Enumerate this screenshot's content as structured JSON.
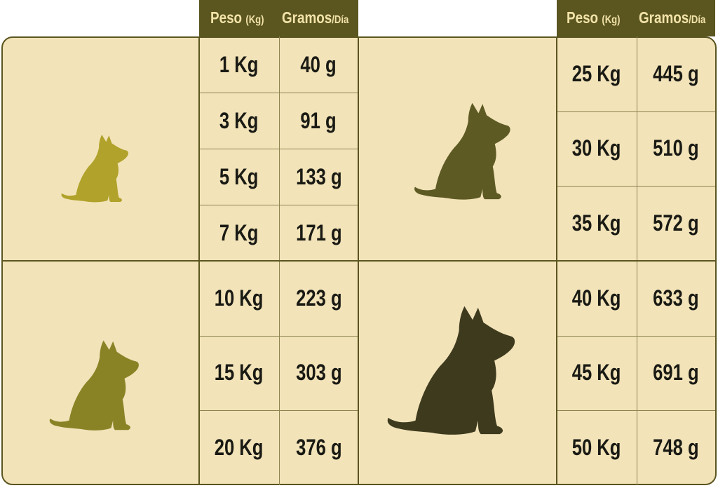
{
  "headers": {
    "peso": "Peso",
    "peso_unit": "(Kg)",
    "gramos": "Gramos",
    "gramos_unit": "/Día"
  },
  "colors": {
    "header_bg": "#5b5520",
    "header_text": "#f2e3a8",
    "panel_bg": "#f2e3b9",
    "dog_small": "#b0a22a",
    "dog_medium": "#8a8326",
    "dog_large": "#5e5a24",
    "dog_xlarge": "#3e3a1e"
  },
  "tables": {
    "left_top": [
      {
        "peso": "1 Kg",
        "gramos": "40 g"
      },
      {
        "peso": "3 Kg",
        "gramos": "91 g"
      },
      {
        "peso": "5 Kg",
        "gramos": "133 g"
      },
      {
        "peso": "7 Kg",
        "gramos": "171 g"
      }
    ],
    "left_bottom": [
      {
        "peso": "10 Kg",
        "gramos": "223 g"
      },
      {
        "peso": "15 Kg",
        "gramos": "303 g"
      },
      {
        "peso": "20 Kg",
        "gramos": "376 g"
      }
    ],
    "right_top": [
      {
        "peso": "25 Kg",
        "gramos": "445 g"
      },
      {
        "peso": "30 Kg",
        "gramos": "510 g"
      },
      {
        "peso": "35 Kg",
        "gramos": "572 g"
      }
    ],
    "right_bottom": [
      {
        "peso": "40 Kg",
        "gramos": "633 g"
      },
      {
        "peso": "45 Kg",
        "gramos": "691 g"
      },
      {
        "peso": "50 Kg",
        "gramos": "748 g"
      }
    ]
  },
  "icons": [
    "dog-silhouette-small",
    "dog-silhouette-medium",
    "dog-silhouette-large",
    "dog-silhouette-xlarge"
  ]
}
